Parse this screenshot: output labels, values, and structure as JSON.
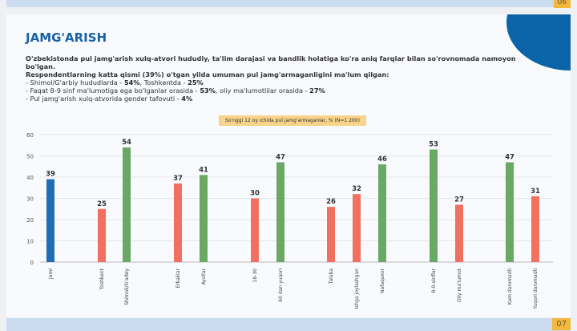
{
  "pages": {
    "prev": "06",
    "next": "07"
  },
  "title": "JAMG'ARISH",
  "intro": "O'zbekistonda pul jamg'arish xulq-atvori hududiy, ta'lim darajasi va bandlik holatiga ko'ra aniq farqlar bilan so'rovnomada namoyon bo'lgan.",
  "lead": "Respondentlarning katta qismi (39%) o'tgan yilda umuman pul jamg'armaganligini ma'lum qilgan:",
  "bullets": [
    {
      "text": "- Shimol/G'arbiy hududlarda - ",
      "v1": "54%",
      "mid": ", Toshkentda - ",
      "v2": "25%"
    },
    {
      "text": "-  Faqat 8-9 sinf ma'lumotiga ega bo'lganlar orasida - ",
      "v1": "53%",
      "mid": ", oliy ma'lumotlilar orasida - ",
      "v2": "27%"
    },
    {
      "text": "- Pul jamg'arish xulq-atvorida gender tafovuti - ",
      "v1": "4%",
      "mid": "",
      "v2": ""
    }
  ],
  "colors": {
    "total": "#1f6db5",
    "low": "#f2705f",
    "high": "#6aa964",
    "title": "#1a62a6",
    "accent": "#0c64a8"
  },
  "chart_data": {
    "type": "bar",
    "title": "So'nggi 12 oy ichida pul jamg'armaganlar, % (N=1 200)",
    "ylim": [
      0,
      60
    ],
    "yticks": [
      0,
      10,
      20,
      30,
      40,
      50,
      60
    ],
    "grid": true,
    "categories": [
      "Jami",
      "Toshkent",
      "Shimoli/G'arbiy",
      "Erkaklar",
      "Ayollar",
      "18-30",
      "60 dan yuqori",
      "Talaba",
      "Ishga joylashgan",
      "Nafaqaxor",
      "8-9-sinflar",
      "Oliy ma'lumot",
      "Kam daromadli",
      "Yuqori daromadli"
    ],
    "values": [
      39,
      25,
      54,
      37,
      41,
      30,
      47,
      26,
      32,
      46,
      53,
      27,
      47,
      31
    ],
    "bar_colors": [
      "total",
      "low",
      "high",
      "low",
      "high",
      "low",
      "high",
      "low",
      "low",
      "high",
      "high",
      "low",
      "high",
      "low"
    ]
  }
}
